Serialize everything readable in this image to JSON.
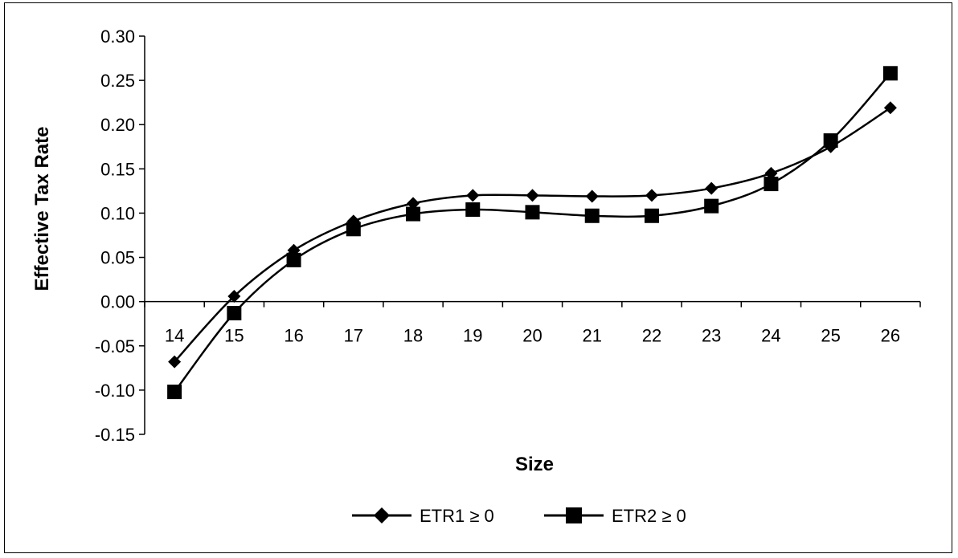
{
  "chart_data": {
    "type": "line",
    "title": "",
    "xlabel": "Size",
    "ylabel": "Effective Tax Rate",
    "categories": [
      "14",
      "15",
      "16",
      "17",
      "18",
      "19",
      "20",
      "21",
      "22",
      "23",
      "24",
      "25",
      "26"
    ],
    "ylim": [
      -0.15,
      0.3
    ],
    "yticks": [
      "0.30",
      "0.25",
      "0.20",
      "0.15",
      "0.10",
      "0.05",
      "0.00",
      "-0.05",
      "-0.10",
      "-0.15"
    ],
    "grid": false,
    "legend_position": "bottom",
    "smooth": true,
    "series": [
      {
        "name": "ETR1 ≥ 0",
        "marker": "diamond",
        "color": "#000000",
        "values": [
          -0.068,
          0.006,
          0.058,
          0.091,
          0.111,
          0.12,
          0.12,
          0.119,
          0.12,
          0.128,
          0.145,
          0.175,
          0.219
        ]
      },
      {
        "name": "ETR2 ≥ 0",
        "marker": "square",
        "color": "#000000",
        "values": [
          -0.102,
          -0.013,
          0.047,
          0.082,
          0.099,
          0.104,
          0.101,
          0.097,
          0.097,
          0.108,
          0.133,
          0.182,
          0.258
        ]
      }
    ]
  }
}
